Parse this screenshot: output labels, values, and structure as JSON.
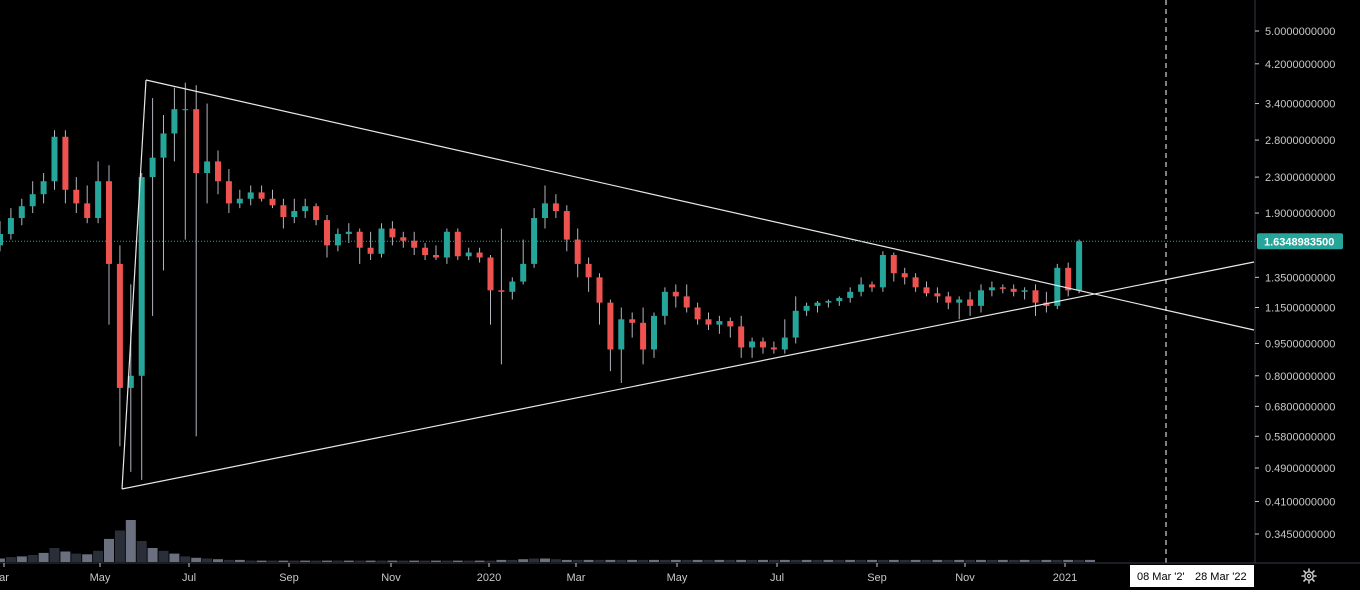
{
  "colors": {
    "background": "#000000",
    "up": "#26a69a",
    "down": "#ef5350",
    "wick": "#b2b5be",
    "drawing": "#e8e8e8",
    "last_price_line": "#26a69a",
    "volume_dark": "#2a2e39",
    "volume_light": "#6b7080",
    "axis_text": "#c8c8c8",
    "axis_line": "#363a45"
  },
  "icons": {
    "settings": "gear-icon"
  },
  "crosshair": {
    "date_label": "08 Mar '2'",
    "range_end_label": "28 Mar '22"
  },
  "chart_data": {
    "type": "candlestick",
    "interval": "weekly",
    "y_scale": "log",
    "last_price": 1.63489835,
    "price_ticks": [
      "5.0000000000",
      "4.2000000000",
      "3.4000000000",
      "2.8000000000",
      "2.3000000000",
      "1.9000000000",
      "1.6348983500",
      "1.3500000000",
      "1.1500000000",
      "0.9500000000",
      "0.8000000000",
      "0.6800000000",
      "0.5800000000",
      "0.4900000000",
      "0.4100000000",
      "0.3450000000"
    ],
    "price_tick_values": [
      5.0,
      4.2,
      3.4,
      2.8,
      2.3,
      1.9,
      1.35,
      1.15,
      0.95,
      0.8,
      0.68,
      0.58,
      0.49,
      0.41,
      0.345
    ],
    "time_labels": [
      "ar",
      "May",
      "Jul",
      "Sep",
      "Nov",
      "2020",
      "Mar",
      "May",
      "Jul",
      "Sep",
      "Nov",
      "2021"
    ],
    "ylim": [
      0.3,
      5.6
    ],
    "candles": [
      [
        1.6,
        1.82,
        1.55,
        1.7
      ],
      [
        1.7,
        1.95,
        1.65,
        1.85
      ],
      [
        1.85,
        2.05,
        1.78,
        1.97
      ],
      [
        1.97,
        2.25,
        1.9,
        2.1
      ],
      [
        2.1,
        2.35,
        2.0,
        2.25
      ],
      [
        2.25,
        2.95,
        2.15,
        2.85
      ],
      [
        2.85,
        2.95,
        2.0,
        2.15
      ],
      [
        2.15,
        2.3,
        1.9,
        2.0
      ],
      [
        2.0,
        2.2,
        1.8,
        1.85
      ],
      [
        1.85,
        2.5,
        1.8,
        2.25
      ],
      [
        2.25,
        2.45,
        1.05,
        1.45
      ],
      [
        1.45,
        1.6,
        0.55,
        0.75
      ],
      [
        0.75,
        1.3,
        0.48,
        0.8
      ],
      [
        0.8,
        2.35,
        0.46,
        2.3
      ],
      [
        2.3,
        3.5,
        1.1,
        2.55
      ],
      [
        2.55,
        3.2,
        1.4,
        2.9
      ],
      [
        2.9,
        3.7,
        2.5,
        3.3
      ],
      [
        3.3,
        3.8,
        1.65,
        3.3
      ],
      [
        3.3,
        3.75,
        0.58,
        2.35
      ],
      [
        2.35,
        3.4,
        2.0,
        2.5
      ],
      [
        2.5,
        2.65,
        2.1,
        2.25
      ],
      [
        2.25,
        2.4,
        1.9,
        2.0
      ],
      [
        2.0,
        2.15,
        1.95,
        2.05
      ],
      [
        2.05,
        2.2,
        1.98,
        2.12
      ],
      [
        2.12,
        2.2,
        2.02,
        2.05
      ],
      [
        2.05,
        2.15,
        1.95,
        1.98
      ],
      [
        1.98,
        2.05,
        1.75,
        1.86
      ],
      [
        1.86,
        2.05,
        1.8,
        1.92
      ],
      [
        1.92,
        2.05,
        1.85,
        1.97
      ],
      [
        1.97,
        2.0,
        1.78,
        1.83
      ],
      [
        1.83,
        1.88,
        1.5,
        1.6
      ],
      [
        1.6,
        1.75,
        1.55,
        1.7
      ],
      [
        1.7,
        1.8,
        1.62,
        1.72
      ],
      [
        1.72,
        1.75,
        1.45,
        1.58
      ],
      [
        1.58,
        1.72,
        1.48,
        1.53
      ],
      [
        1.53,
        1.8,
        1.5,
        1.75
      ],
      [
        1.75,
        1.82,
        1.6,
        1.67
      ],
      [
        1.67,
        1.72,
        1.58,
        1.64
      ],
      [
        1.64,
        1.72,
        1.52,
        1.58
      ],
      [
        1.58,
        1.62,
        1.48,
        1.52
      ],
      [
        1.52,
        1.6,
        1.48,
        1.5
      ],
      [
        1.5,
        1.75,
        1.45,
        1.72
      ],
      [
        1.72,
        1.75,
        1.48,
        1.51
      ],
      [
        1.51,
        1.58,
        1.48,
        1.54
      ],
      [
        1.54,
        1.58,
        1.46,
        1.5
      ],
      [
        1.5,
        1.52,
        1.05,
        1.26
      ],
      [
        1.26,
        1.75,
        0.85,
        1.25
      ],
      [
        1.25,
        1.35,
        1.2,
        1.32
      ],
      [
        1.32,
        1.65,
        1.3,
        1.45
      ],
      [
        1.45,
        1.95,
        1.42,
        1.85
      ],
      [
        1.85,
        2.2,
        1.75,
        2.0
      ],
      [
        2.0,
        2.1,
        1.85,
        1.92
      ],
      [
        1.92,
        1.98,
        1.55,
        1.65
      ],
      [
        1.65,
        1.75,
        1.35,
        1.45
      ],
      [
        1.45,
        1.5,
        1.25,
        1.35
      ],
      [
        1.35,
        1.38,
        1.05,
        1.18
      ],
      [
        1.18,
        1.2,
        0.82,
        0.92
      ],
      [
        0.92,
        1.15,
        0.77,
        1.08
      ],
      [
        1.08,
        1.12,
        0.98,
        1.06
      ],
      [
        1.06,
        1.15,
        0.85,
        0.92
      ],
      [
        0.92,
        1.12,
        0.88,
        1.1
      ],
      [
        1.1,
        1.28,
        1.05,
        1.25
      ],
      [
        1.25,
        1.3,
        1.15,
        1.22
      ],
      [
        1.22,
        1.3,
        1.12,
        1.15
      ],
      [
        1.15,
        1.18,
        1.05,
        1.08
      ],
      [
        1.08,
        1.12,
        1.02,
        1.05
      ],
      [
        1.05,
        1.1,
        1.0,
        1.07
      ],
      [
        1.07,
        1.09,
        0.98,
        1.04
      ],
      [
        1.04,
        1.1,
        0.88,
        0.93
      ],
      [
        0.93,
        0.98,
        0.88,
        0.96
      ],
      [
        0.96,
        0.98,
        0.9,
        0.93
      ],
      [
        0.93,
        0.96,
        0.9,
        0.92
      ],
      [
        0.92,
        1.08,
        0.9,
        0.98
      ],
      [
        0.98,
        1.22,
        0.95,
        1.13
      ],
      [
        1.13,
        1.18,
        1.1,
        1.16
      ],
      [
        1.16,
        1.19,
        1.12,
        1.18
      ],
      [
        1.18,
        1.2,
        1.15,
        1.19
      ],
      [
        1.19,
        1.22,
        1.16,
        1.21
      ],
      [
        1.21,
        1.28,
        1.18,
        1.25
      ],
      [
        1.25,
        1.35,
        1.22,
        1.3
      ],
      [
        1.3,
        1.32,
        1.25,
        1.28
      ],
      [
        1.28,
        1.55,
        1.25,
        1.52
      ],
      [
        1.52,
        1.54,
        1.32,
        1.38
      ],
      [
        1.38,
        1.42,
        1.3,
        1.35
      ],
      [
        1.35,
        1.38,
        1.25,
        1.28
      ],
      [
        1.28,
        1.32,
        1.22,
        1.24
      ],
      [
        1.24,
        1.28,
        1.18,
        1.22
      ],
      [
        1.22,
        1.25,
        1.14,
        1.18
      ],
      [
        1.18,
        1.22,
        1.08,
        1.2
      ],
      [
        1.2,
        1.25,
        1.1,
        1.16
      ],
      [
        1.16,
        1.3,
        1.12,
        1.26
      ],
      [
        1.26,
        1.32,
        1.22,
        1.28
      ],
      [
        1.28,
        1.3,
        1.24,
        1.27
      ],
      [
        1.27,
        1.3,
        1.22,
        1.25
      ],
      [
        1.25,
        1.28,
        1.2,
        1.26
      ],
      [
        1.26,
        1.3,
        1.1,
        1.18
      ],
      [
        1.18,
        1.25,
        1.12,
        1.16
      ],
      [
        1.16,
        1.45,
        1.14,
        1.42
      ],
      [
        1.42,
        1.46,
        1.22,
        1.26
      ],
      [
        1.26,
        1.65,
        1.24,
        1.635
      ]
    ],
    "volume": [
      0.05,
      0.07,
      0.08,
      0.1,
      0.13,
      0.2,
      0.15,
      0.12,
      0.11,
      0.16,
      0.33,
      0.45,
      0.6,
      0.3,
      0.2,
      0.16,
      0.12,
      0.08,
      0.06,
      0.05,
      0.04,
      0.03,
      0.03,
      0.02,
      0.02,
      0.02,
      0.02,
      0.02,
      0.02,
      0.02,
      0.02,
      0.02,
      0.02,
      0.02,
      0.02,
      0.02,
      0.02,
      0.02,
      0.02,
      0.02,
      0.02,
      0.02,
      0.02,
      0.02,
      0.02,
      0.02,
      0.03,
      0.03,
      0.04,
      0.05,
      0.05,
      0.04,
      0.03,
      0.03,
      0.03,
      0.03,
      0.03,
      0.03,
      0.03,
      0.03,
      0.03,
      0.03,
      0.03,
      0.03,
      0.03,
      0.03,
      0.03,
      0.03,
      0.03,
      0.03,
      0.03,
      0.03,
      0.03,
      0.03,
      0.03,
      0.03,
      0.03,
      0.03,
      0.03,
      0.03,
      0.03,
      0.03,
      0.03,
      0.03,
      0.03,
      0.03,
      0.03,
      0.03,
      0.03,
      0.03,
      0.03,
      0.03,
      0.03,
      0.03,
      0.03,
      0.03,
      0.03,
      0.03,
      0.03,
      0.03,
      0.03
    ]
  }
}
